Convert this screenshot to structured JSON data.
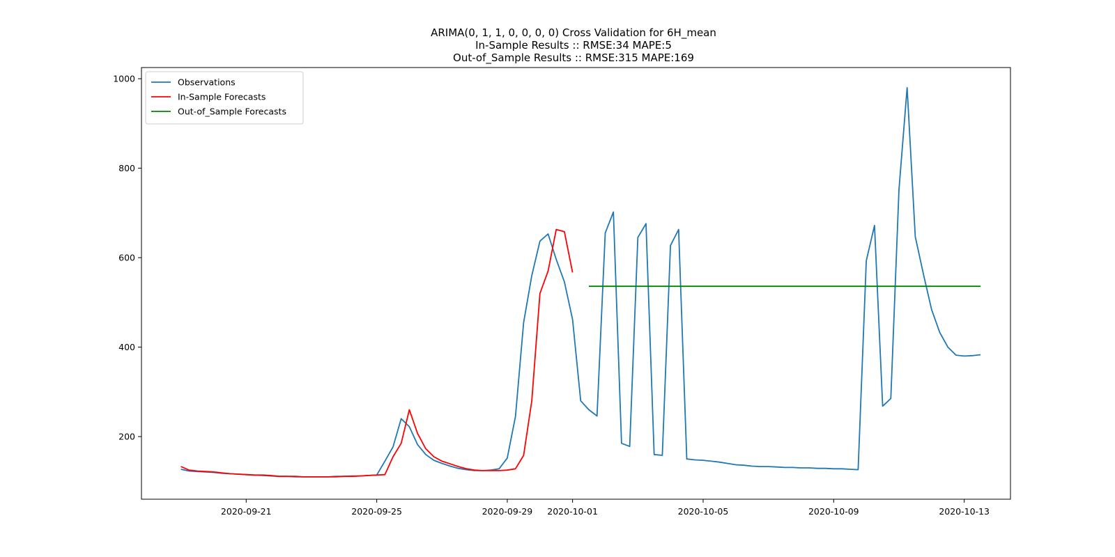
{
  "chart_data": {
    "type": "line",
    "title_lines": [
      "ARIMA(0, 1, 1, 0, 0, 0, 0) Cross Validation for 6H_mean",
      "In-Sample Results :: RMSE:34 MAPE:5",
      "Out-of_Sample Results :: RMSE:315 MAPE:169"
    ],
    "xlabel": "",
    "ylabel": "",
    "x_axis": {
      "type": "date",
      "range": [
        "2020-09-17T19:00",
        "2020-10-14T10:00"
      ],
      "ticks": [
        "2020-09-21",
        "2020-09-25",
        "2020-09-29",
        "2020-10-01",
        "2020-10-05",
        "2020-10-09",
        "2020-10-13"
      ]
    },
    "y_axis": {
      "range": [
        60,
        1025
      ],
      "ticks": [
        200,
        400,
        600,
        800,
        1000
      ]
    },
    "grid": false,
    "legend": {
      "placement": "top-left",
      "entries": [
        "Observations",
        "In-Sample Forecasts",
        "Out-of_Sample Forecasts"
      ]
    },
    "series": [
      {
        "name": "Observations",
        "color": "#1f77b4",
        "x": [
          "2020-09-19T00:00",
          "2020-09-19T06:00",
          "2020-09-19T12:00",
          "2020-09-19T18:00",
          "2020-09-20T00:00",
          "2020-09-20T06:00",
          "2020-09-20T12:00",
          "2020-09-20T18:00",
          "2020-09-21T00:00",
          "2020-09-21T06:00",
          "2020-09-21T12:00",
          "2020-09-21T18:00",
          "2020-09-22T00:00",
          "2020-09-22T06:00",
          "2020-09-22T12:00",
          "2020-09-22T18:00",
          "2020-09-23T00:00",
          "2020-09-23T06:00",
          "2020-09-23T12:00",
          "2020-09-23T18:00",
          "2020-09-24T00:00",
          "2020-09-24T06:00",
          "2020-09-24T12:00",
          "2020-09-24T18:00",
          "2020-09-25T00:00",
          "2020-09-25T06:00",
          "2020-09-25T12:00",
          "2020-09-25T18:00",
          "2020-09-26T00:00",
          "2020-09-26T06:00",
          "2020-09-26T12:00",
          "2020-09-26T18:00",
          "2020-09-27T00:00",
          "2020-09-27T06:00",
          "2020-09-27T12:00",
          "2020-09-27T18:00",
          "2020-09-28T00:00",
          "2020-09-28T06:00",
          "2020-09-28T12:00",
          "2020-09-28T18:00",
          "2020-09-29T00:00",
          "2020-09-29T06:00",
          "2020-09-29T12:00",
          "2020-09-29T18:00",
          "2020-09-30T00:00",
          "2020-09-30T06:00",
          "2020-09-30T12:00",
          "2020-09-30T18:00",
          "2020-10-01T00:00",
          "2020-10-01T06:00",
          "2020-10-01T12:00",
          "2020-10-01T18:00",
          "2020-10-02T00:00",
          "2020-10-02T06:00",
          "2020-10-02T12:00",
          "2020-10-02T18:00",
          "2020-10-03T00:00",
          "2020-10-03T06:00",
          "2020-10-03T12:00",
          "2020-10-03T18:00",
          "2020-10-04T00:00",
          "2020-10-04T06:00",
          "2020-10-04T12:00",
          "2020-10-04T18:00",
          "2020-10-05T00:00",
          "2020-10-05T06:00",
          "2020-10-05T12:00",
          "2020-10-05T18:00",
          "2020-10-06T00:00",
          "2020-10-06T06:00",
          "2020-10-06T12:00",
          "2020-10-06T18:00",
          "2020-10-07T00:00",
          "2020-10-07T06:00",
          "2020-10-07T12:00",
          "2020-10-07T18:00",
          "2020-10-08T00:00",
          "2020-10-08T06:00",
          "2020-10-08T12:00",
          "2020-10-08T18:00",
          "2020-10-09T00:00",
          "2020-10-09T06:00",
          "2020-10-09T12:00",
          "2020-10-09T18:00",
          "2020-10-10T00:00",
          "2020-10-10T06:00",
          "2020-10-10T12:00",
          "2020-10-10T18:00",
          "2020-10-11T00:00",
          "2020-10-11T06:00",
          "2020-10-11T12:00",
          "2020-10-11T18:00",
          "2020-10-12T00:00",
          "2020-10-12T06:00",
          "2020-10-12T12:00",
          "2020-10-12T18:00",
          "2020-10-13T00:00",
          "2020-10-13T06:00",
          "2020-10-13T12:00"
        ],
        "y": [
          127,
          123,
          122,
          121,
          120,
          118,
          117,
          116,
          115,
          114,
          113,
          112,
          111,
          111,
          110,
          110,
          110,
          110,
          110,
          111,
          111,
          112,
          112,
          113,
          114,
          145,
          177,
          240,
          222,
          182,
          160,
          147,
          140,
          134,
          129,
          126,
          124,
          124,
          125,
          128,
          152,
          245,
          455,
          560,
          637,
          653,
          596,
          546,
          462,
          280,
          260,
          246,
          655,
          702,
          185,
          178,
          645,
          676,
          160,
          158,
          627,
          663,
          150,
          148,
          147,
          145,
          143,
          140,
          137,
          136,
          134,
          133,
          133,
          132,
          131,
          131,
          130,
          130,
          129,
          129,
          128,
          128,
          127,
          126,
          593,
          672,
          268,
          285,
          752,
          980,
          647,
          563,
          484,
          433,
          400,
          382,
          380,
          381,
          383
        ]
      },
      {
        "name": "In-Sample Forecasts",
        "color": "#ff0000",
        "x": [
          "2020-09-19T00:00",
          "2020-09-19T06:00",
          "2020-09-19T12:00",
          "2020-09-19T18:00",
          "2020-09-20T00:00",
          "2020-09-20T06:00",
          "2020-09-20T12:00",
          "2020-09-20T18:00",
          "2020-09-21T00:00",
          "2020-09-21T06:00",
          "2020-09-21T12:00",
          "2020-09-21T18:00",
          "2020-09-22T00:00",
          "2020-09-22T06:00",
          "2020-09-22T12:00",
          "2020-09-22T18:00",
          "2020-09-23T00:00",
          "2020-09-23T06:00",
          "2020-09-23T12:00",
          "2020-09-23T18:00",
          "2020-09-24T00:00",
          "2020-09-24T06:00",
          "2020-09-24T12:00",
          "2020-09-24T18:00",
          "2020-09-25T00:00",
          "2020-09-25T06:00",
          "2020-09-25T12:00",
          "2020-09-25T18:00",
          "2020-09-26T00:00",
          "2020-09-26T06:00",
          "2020-09-26T12:00",
          "2020-09-26T18:00",
          "2020-09-27T00:00",
          "2020-09-27T06:00",
          "2020-09-27T12:00",
          "2020-09-27T18:00",
          "2020-09-28T00:00",
          "2020-09-28T06:00",
          "2020-09-28T12:00",
          "2020-09-28T18:00",
          "2020-09-29T00:00",
          "2020-09-29T06:00",
          "2020-09-29T12:00",
          "2020-09-29T18:00",
          "2020-09-30T00:00",
          "2020-09-30T06:00",
          "2020-09-30T12:00",
          "2020-09-30T18:00",
          "2020-10-01T00:00"
        ],
        "y": [
          133,
          125,
          123,
          122,
          121,
          119,
          117,
          116,
          115,
          114,
          114,
          113,
          111,
          111,
          111,
          110,
          110,
          110,
          110,
          110,
          111,
          111,
          112,
          113,
          114,
          115,
          155,
          185,
          260,
          207,
          173,
          155,
          145,
          139,
          133,
          128,
          125,
          124,
          124,
          124,
          125,
          128,
          158,
          280,
          520,
          570,
          663,
          658,
          567
        ]
      },
      {
        "name": "Out-of_Sample Forecasts",
        "color": "#008000",
        "x": [
          "2020-10-01T12:00",
          "2020-10-13T12:00"
        ],
        "y": [
          536,
          536
        ]
      }
    ]
  }
}
